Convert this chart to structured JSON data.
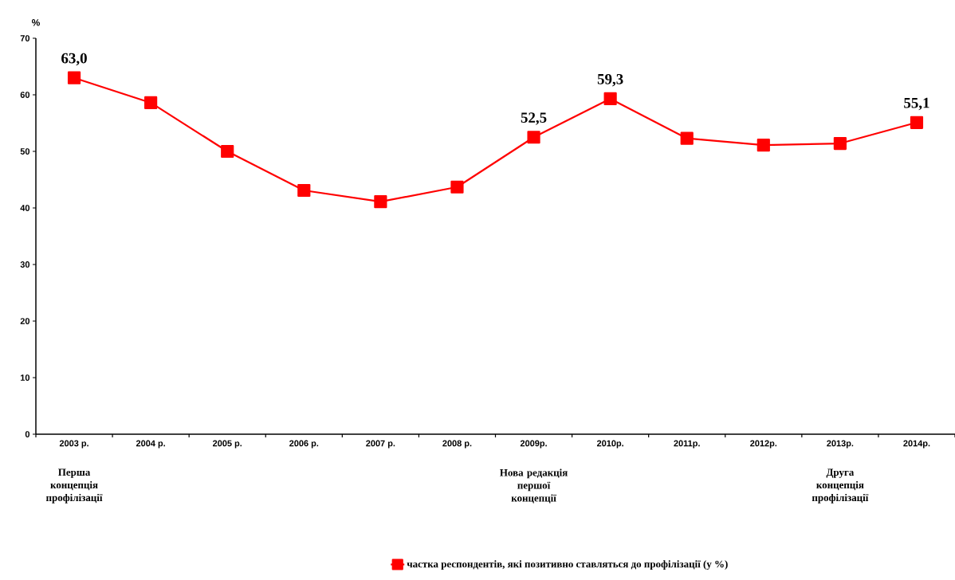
{
  "chart_data": {
    "type": "line",
    "ylabel": "%",
    "categories": [
      "2003 р.",
      "2004 р.",
      "2005 р.",
      "2006 р.",
      "2007 р.",
      "2008 р.",
      "2009р.",
      "2010р.",
      "2011р.",
      "2012р.",
      "2013р.",
      "2014р."
    ],
    "series": [
      {
        "name": "частка респондентів, які позитивно ставляться до профілізації (у %)",
        "color": "#ff0000",
        "values": [
          63.0,
          58.6,
          50.0,
          43.1,
          41.1,
          43.7,
          52.5,
          59.3,
          52.3,
          51.1,
          51.4,
          55.1
        ],
        "value_labels": [
          "63,0",
          null,
          null,
          null,
          null,
          null,
          "52,5",
          "59,3",
          null,
          null,
          null,
          "55,1"
        ]
      }
    ],
    "ylim": [
      0,
      70
    ],
    "yticks": [
      0,
      10,
      20,
      30,
      40,
      50,
      60,
      70
    ],
    "marker": "square",
    "line_style": "solid",
    "legend": "bottom",
    "annotations": [
      "Перша концепція профілізації",
      "Нова редакція першої концепції",
      "Друга концепція профілізації"
    ]
  }
}
